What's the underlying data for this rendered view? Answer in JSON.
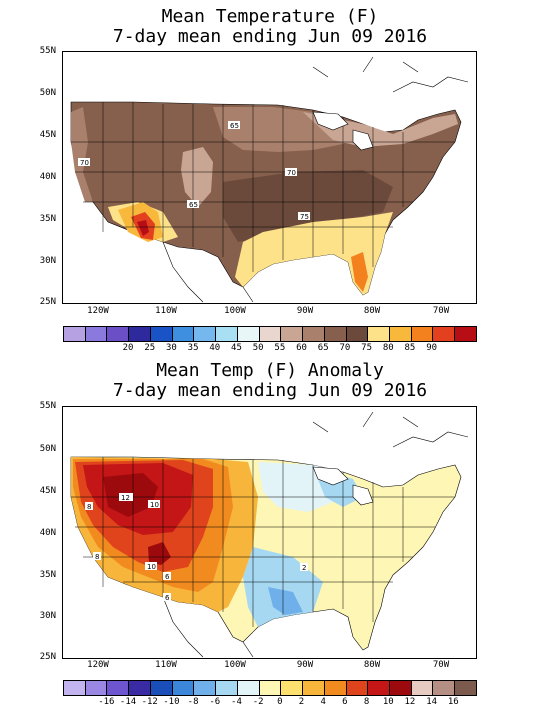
{
  "panels": [
    {
      "title_line1": "Mean Temperature (F)",
      "title_line2": "7-day mean ending Jun 09 2016",
      "y_ticks": [
        "55N",
        "50N",
        "45N",
        "40N",
        "35N",
        "30N",
        "25N"
      ],
      "x_ticks": [
        "120W",
        "110W",
        "100W",
        "90W",
        "80W",
        "70W"
      ],
      "colorbar_colors": [
        "#b6a2e3",
        "#8c79dd",
        "#6a4fc7",
        "#2e2a9e",
        "#1a53c6",
        "#3f8fe0",
        "#74b8ee",
        "#a8dff2",
        "#e8f6f7",
        "#e9d7cf",
        "#c9a594",
        "#a9806c",
        "#86604d",
        "#6b4a3c",
        "#fde28a",
        "#f8b83c",
        "#f2811e",
        "#e2401e",
        "#b70e16"
      ],
      "colorbar_labels": [
        "20",
        "25",
        "30",
        "35",
        "40",
        "45",
        "50",
        "55",
        "60",
        "65",
        "70",
        "75",
        "80",
        "85",
        "90"
      ],
      "map_labels": [
        {
          "text": "70",
          "region": "pacific-northwest"
        },
        {
          "text": "65",
          "region": "northern-plains"
        },
        {
          "text": "70",
          "region": "ohio-valley"
        },
        {
          "text": "65",
          "region": "colorado"
        },
        {
          "text": "75",
          "region": "tennessee"
        }
      ]
    },
    {
      "title_line1": "Mean Temp (F) Anomaly",
      "title_line2": "7-day mean ending Jun 09 2016",
      "y_ticks": [
        "55N",
        "50N",
        "45N",
        "40N",
        "35N",
        "30N",
        "25N"
      ],
      "x_ticks": [
        "120W",
        "110W",
        "100W",
        "90W",
        "80W",
        "70W"
      ],
      "colorbar_colors": [
        "#c3b3ee",
        "#9a86e3",
        "#6e55d0",
        "#3a2aa3",
        "#1a4fba",
        "#3b86d8",
        "#6fb0ea",
        "#a6d8f2",
        "#e2f4f7",
        "#fdf6b4",
        "#fde06e",
        "#f8b53b",
        "#f18a1f",
        "#e0441d",
        "#c41616",
        "#9c0a0e",
        "#e6cbc3",
        "#b58f83",
        "#7c5a4e"
      ],
      "colorbar_labels": [
        "-16",
        "-14",
        "-12",
        "-10",
        "-8",
        "-6",
        "-4",
        "-2",
        "0",
        "2",
        "4",
        "6",
        "8",
        "10",
        "12",
        "14",
        "16"
      ],
      "map_labels": [
        {
          "text": "12",
          "region": "idaho"
        },
        {
          "text": "10",
          "region": "wyoming"
        },
        {
          "text": "8",
          "region": "oregon"
        },
        {
          "text": "8",
          "region": "california"
        },
        {
          "text": "10",
          "region": "utah"
        },
        {
          "text": "6",
          "region": "arizona"
        },
        {
          "text": "6",
          "region": "arizona-south"
        },
        {
          "text": "2",
          "region": "tennessee"
        }
      ]
    }
  ]
}
